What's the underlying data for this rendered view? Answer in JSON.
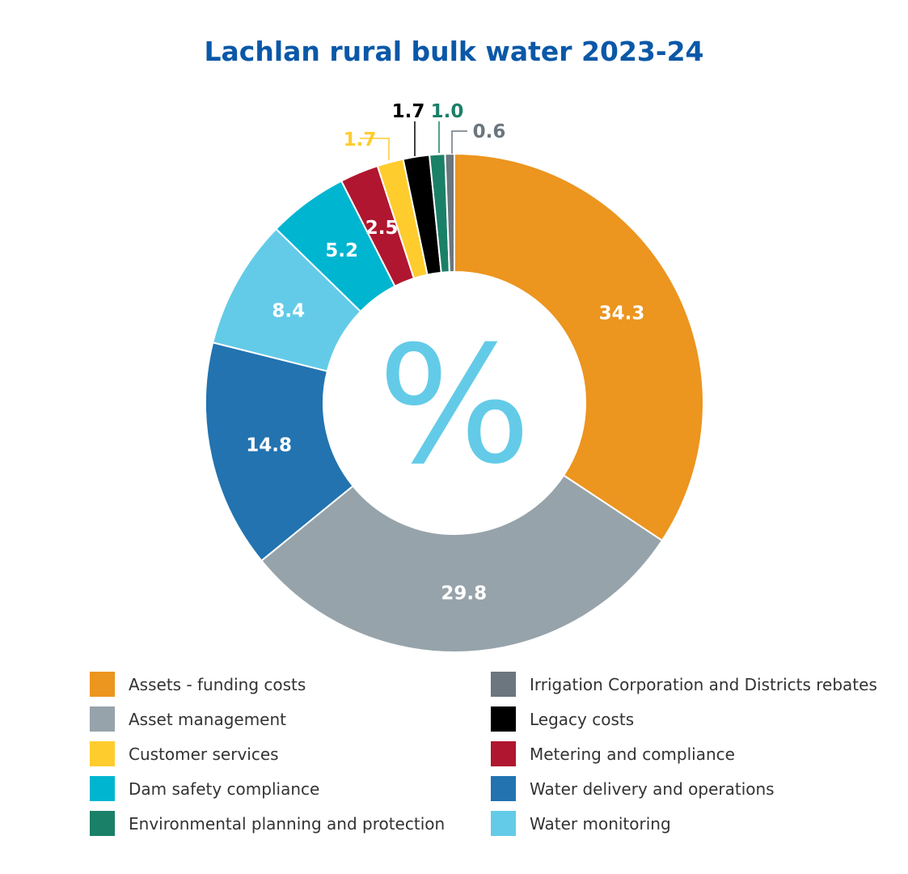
{
  "chart_data": {
    "type": "pie",
    "title": "Lachlan rural bulk water 2023-24",
    "center_symbol": "%",
    "slices": [
      {
        "label": "Assets - funding costs",
        "value": 34.3,
        "value_label": "34.3",
        "color": "#ec951f"
      },
      {
        "label": "Asset management",
        "value": 29.8,
        "value_label": "29.8",
        "color": "#96a3aa"
      },
      {
        "label": "Water delivery and operations",
        "value": 14.8,
        "value_label": "14.8",
        "color": "#2273b0"
      },
      {
        "label": "Water monitoring",
        "value": 8.4,
        "value_label": "8.4",
        "color": "#63cbe8"
      },
      {
        "label": "Dam safety compliance",
        "value": 5.2,
        "value_label": "5.2",
        "color": "#00b5d0"
      },
      {
        "label": "Metering and compliance",
        "value": 2.5,
        "value_label": "2.5",
        "color": "#b0162f"
      },
      {
        "label": "Customer services",
        "value": 1.7,
        "value_label": "1.7",
        "color": "#ffcc2e"
      },
      {
        "label": "Legacy costs",
        "value": 1.7,
        "value_label": "1.7",
        "color": "#000000"
      },
      {
        "label": "Environmental planning and protection",
        "value": 1.0,
        "value_label": "1.0",
        "color": "#1b8068"
      },
      {
        "label": "Irrigation Corporation and Districts rebates",
        "value": 0.6,
        "value_label": "0.6",
        "color": "#6b767e"
      }
    ],
    "legend": {
      "placement": "bottom",
      "left_column": [
        "Assets - funding costs",
        "Asset management",
        "Customer services",
        "Dam safety compliance",
        "Environmental planning and protection"
      ],
      "right_column": [
        "Irrigation Corporation and Districts rebates",
        "Legacy costs",
        "Metering and compliance",
        "Water delivery and operations",
        "Water monitoring"
      ]
    }
  }
}
